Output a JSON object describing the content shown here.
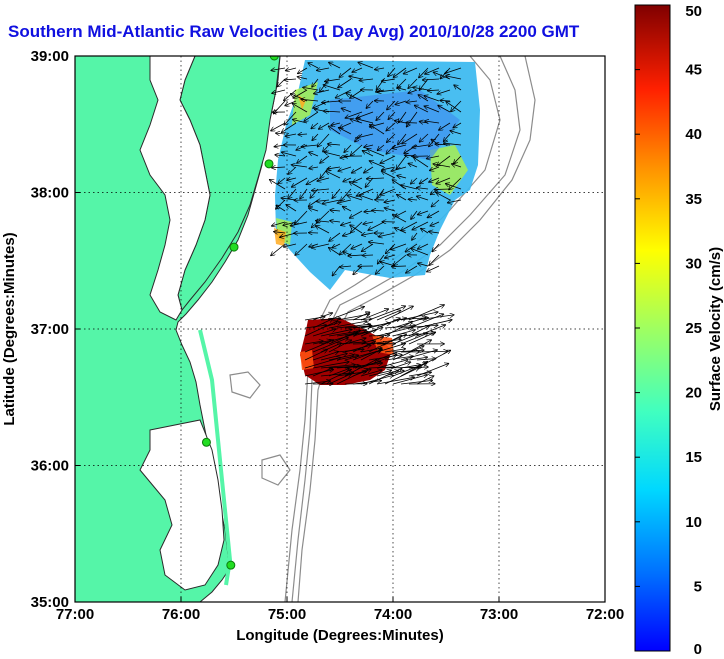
{
  "title": "Southern Mid-Atlantic Raw Velocities (1 Day Avg) 2010/10/28 2200 GMT",
  "axes": {
    "xlabel": "Longitude (Degrees:Minutes)",
    "ylabel": "Latitude (Degrees:Minutes)",
    "x_ticks": [
      "77:00",
      "76:00",
      "75:00",
      "74:00",
      "73:00",
      "72:00"
    ],
    "y_ticks": [
      "39:00",
      "38:00",
      "37:00",
      "36:00",
      "35:00"
    ],
    "x_range": [
      -77,
      -72
    ],
    "y_range": [
      35,
      39
    ],
    "grid": true
  },
  "colorbar": {
    "label": "Surface Velocity (cm/s)",
    "ticks": [
      "50",
      "45",
      "40",
      "35",
      "30",
      "25",
      "20",
      "15",
      "10",
      "5",
      "0"
    ],
    "range": [
      0,
      50
    ],
    "colormap": "jet"
  },
  "colors": {
    "land": "#55f5a8",
    "coastline": "#2a2a2a",
    "bathymetry": "#8c8c8c",
    "title": "#1010e0",
    "station": "#22dd22"
  },
  "stations_lonlat": [
    [
      -75.12,
      39.0
    ],
    [
      -75.17,
      38.21
    ],
    [
      -75.5,
      37.6
    ],
    [
      -75.76,
      36.17
    ],
    [
      -75.53,
      35.27
    ]
  ]
}
